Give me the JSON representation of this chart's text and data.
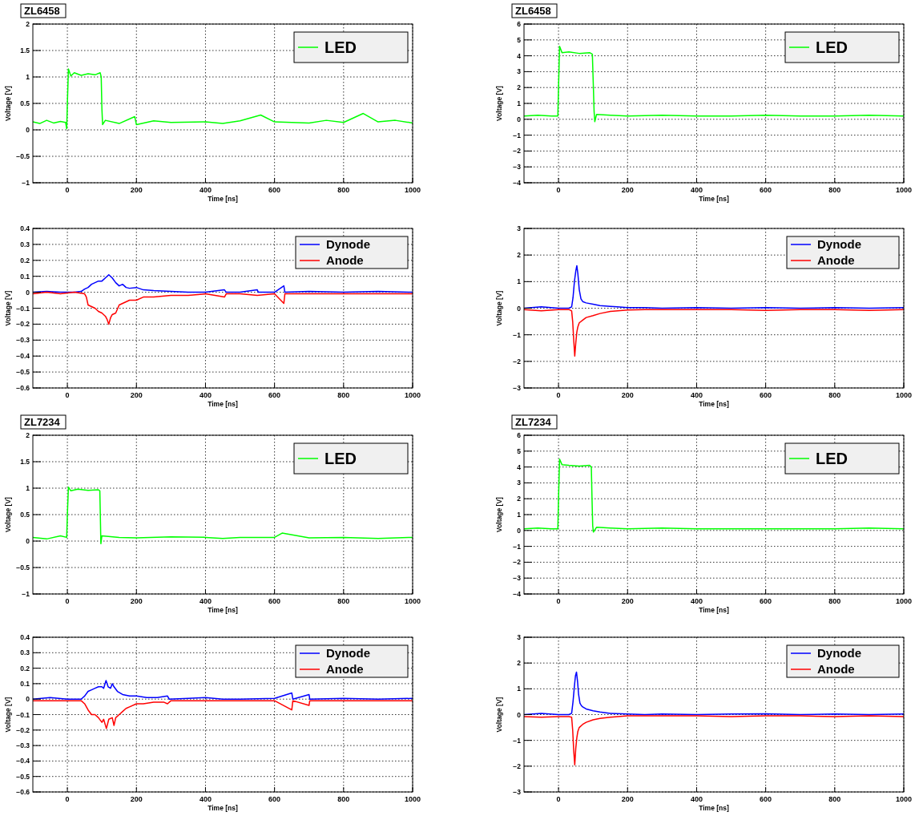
{
  "chart_data": [
    {
      "type": "line",
      "title": "ZL6458",
      "xlabel": "Time [ns]",
      "ylabel": "Voltage [V]",
      "xlim": [
        -100,
        1000
      ],
      "xticks": [
        0,
        200,
        400,
        600,
        800,
        1000
      ],
      "ylim": [
        -1,
        2
      ],
      "yticks": [
        -1,
        -0.5,
        0,
        0.5,
        1,
        1.5,
        2
      ],
      "grid": true,
      "legend": "top right",
      "series": [
        {
          "name": "LED",
          "color": "#00ff00",
          "x": [
            -100,
            -80,
            -60,
            -40,
            -20,
            -5,
            -2,
            0,
            3,
            10,
            20,
            40,
            60,
            80,
            95,
            98,
            100,
            102,
            110,
            150,
            195,
            200,
            250,
            300,
            400,
            450,
            500,
            560,
            600,
            700,
            750,
            800,
            857,
            900,
            950,
            1000
          ],
          "values": [
            0.15,
            0.12,
            0.18,
            0.13,
            0.16,
            0.14,
            0.02,
            0.5,
            1.15,
            1.02,
            1.08,
            1.03,
            1.06,
            1.04,
            1.08,
            1.0,
            0.4,
            0.1,
            0.18,
            0.12,
            0.25,
            0.1,
            0.17,
            0.14,
            0.15,
            0.12,
            0.17,
            0.28,
            0.15,
            0.13,
            0.18,
            0.14,
            0.31,
            0.15,
            0.18,
            0.13
          ]
        }
      ]
    },
    {
      "type": "line",
      "title": "ZL6458",
      "xlabel": "Time [ns]",
      "ylabel": "Voltage [V]",
      "xlim": [
        -100,
        1000
      ],
      "xticks": [
        0,
        200,
        400,
        600,
        800,
        1000
      ],
      "ylim": [
        -4,
        6
      ],
      "yticks": [
        -4,
        -3,
        -2,
        -1,
        0,
        1,
        2,
        3,
        4,
        5,
        6
      ],
      "grid": true,
      "legend": "top right",
      "series": [
        {
          "name": "LED",
          "color": "#00ff00",
          "x": [
            -100,
            -60,
            -20,
            -2,
            0,
            3,
            10,
            30,
            60,
            90,
            98,
            101,
            103,
            105,
            110,
            150,
            200,
            300,
            400,
            500,
            600,
            700,
            800,
            900,
            1000
          ],
          "values": [
            0.2,
            0.25,
            0.2,
            0.2,
            2.0,
            4.6,
            4.2,
            4.25,
            4.15,
            4.2,
            4.1,
            2.0,
            0.5,
            -0.15,
            0.3,
            0.25,
            0.2,
            0.25,
            0.2,
            0.2,
            0.25,
            0.2,
            0.2,
            0.25,
            0.2
          ]
        }
      ]
    },
    {
      "type": "line",
      "xlabel": "Time [ns]",
      "ylabel": "Voltage [V]",
      "xlim": [
        -100,
        1000
      ],
      "xticks": [
        0,
        200,
        400,
        600,
        800,
        1000
      ],
      "ylim": [
        -0.6,
        0.4
      ],
      "yticks": [
        -0.6,
        -0.5,
        -0.4,
        -0.3,
        -0.2,
        -0.1,
        0,
        0.1,
        0.2,
        0.3,
        0.4
      ],
      "grid": true,
      "legend": "top right",
      "series": [
        {
          "name": "Dynode",
          "color": "#0000ff",
          "x": [
            -100,
            -60,
            -20,
            20,
            40,
            50,
            60,
            70,
            80,
            90,
            100,
            110,
            115,
            120,
            125,
            130,
            140,
            150,
            160,
            170,
            180,
            200,
            220,
            250,
            300,
            350,
            400,
            455,
            460,
            500,
            550,
            553,
            600,
            627,
            630,
            700,
            800,
            900,
            1000
          ],
          "values": [
            0,
            0.005,
            0,
            0,
            0.005,
            0.02,
            0.03,
            0.05,
            0.06,
            0.07,
            0.07,
            0.09,
            0.1,
            0.11,
            0.1,
            0.09,
            0.06,
            0.04,
            0.05,
            0.03,
            0.025,
            0.03,
            0.015,
            0.01,
            0.005,
            0,
            0,
            0.015,
            0,
            0,
            0.015,
            0,
            0,
            0.04,
            0,
            0.005,
            0,
            0.005,
            0
          ]
        },
        {
          "name": "Anode",
          "color": "#ff0000",
          "x": [
            -100,
            -60,
            -20,
            20,
            50,
            55,
            60,
            70,
            80,
            90,
            100,
            110,
            115,
            120,
            125,
            130,
            140,
            150,
            160,
            170,
            180,
            200,
            220,
            250,
            300,
            350,
            400,
            455,
            460,
            500,
            550,
            600,
            627,
            630,
            700,
            800,
            900,
            1000
          ],
          "values": [
            -0.01,
            0,
            -0.01,
            0,
            -0.01,
            -0.03,
            -0.08,
            -0.09,
            -0.1,
            -0.12,
            -0.13,
            -0.15,
            -0.17,
            -0.2,
            -0.16,
            -0.14,
            -0.13,
            -0.08,
            -0.07,
            -0.06,
            -0.05,
            -0.05,
            -0.03,
            -0.03,
            -0.02,
            -0.02,
            -0.01,
            -0.03,
            -0.01,
            -0.01,
            -0.02,
            -0.01,
            -0.07,
            -0.01,
            -0.01,
            -0.01,
            -0.01,
            -0.01
          ]
        }
      ]
    },
    {
      "type": "line",
      "xlabel": "Time [ns]",
      "ylabel": "Voltage [V]",
      "xlim": [
        -100,
        1000
      ],
      "xticks": [
        0,
        200,
        400,
        600,
        800,
        1000
      ],
      "ylim": [
        -3,
        3
      ],
      "yticks": [
        -3,
        -2,
        -1,
        0,
        1,
        2,
        3
      ],
      "grid": true,
      "legend": "top right",
      "series": [
        {
          "name": "Dynode",
          "color": "#0000ff",
          "x": [
            -100,
            -50,
            0,
            30,
            38,
            42,
            46,
            50,
            53,
            56,
            60,
            65,
            70,
            80,
            100,
            120,
            150,
            170,
            200,
            250,
            300,
            400,
            500,
            600,
            700,
            800,
            900,
            1000
          ],
          "values": [
            0,
            0.05,
            0,
            0,
            0.05,
            0.4,
            1.0,
            1.4,
            1.6,
            1.3,
            0.7,
            0.35,
            0.25,
            0.2,
            0.15,
            0.1,
            0.07,
            0.05,
            0.02,
            0.02,
            0,
            0.02,
            0,
            0.02,
            0,
            0.02,
            0,
            0.02
          ]
        },
        {
          "name": "Anode",
          "color": "#ff0000",
          "x": [
            -100,
            -50,
            0,
            30,
            38,
            41,
            44,
            47,
            50,
            53,
            56,
            60,
            70,
            80,
            100,
            120,
            150,
            200,
            250,
            300,
            400,
            500,
            600,
            700,
            800,
            900,
            1000
          ],
          "values": [
            -0.05,
            -0.1,
            -0.05,
            -0.05,
            -0.1,
            -0.5,
            -1.2,
            -1.8,
            -1.3,
            -0.9,
            -0.7,
            -0.55,
            -0.45,
            -0.35,
            -0.28,
            -0.2,
            -0.12,
            -0.07,
            -0.05,
            -0.05,
            -0.05,
            -0.05,
            -0.08,
            -0.05,
            -0.05,
            -0.08,
            -0.05
          ]
        }
      ]
    },
    {
      "type": "line",
      "title": "ZL7234",
      "xlabel": "Time [ns]",
      "ylabel": "Voltage [V]",
      "xlim": [
        -100,
        1000
      ],
      "xticks": [
        0,
        200,
        400,
        600,
        800,
        1000
      ],
      "ylim": [
        -1,
        2
      ],
      "yticks": [
        -1,
        -0.5,
        0,
        0.5,
        1,
        1.5,
        2
      ],
      "grid": true,
      "legend": "top right",
      "series": [
        {
          "name": "LED",
          "color": "#00ff00",
          "x": [
            -100,
            -60,
            -20,
            -2,
            0,
            3,
            10,
            30,
            60,
            90,
            94,
            96,
            97,
            100,
            150,
            200,
            300,
            400,
            450,
            500,
            600,
            622,
            700,
            800,
            900,
            1000
          ],
          "values": [
            0.07,
            0.04,
            0.1,
            0.07,
            0.5,
            1.02,
            0.95,
            0.98,
            0.96,
            0.97,
            0.95,
            0.3,
            -0.05,
            0.1,
            0.07,
            0.06,
            0.08,
            0.07,
            0.05,
            0.07,
            0.07,
            0.15,
            0.06,
            0.07,
            0.05,
            0.07
          ]
        }
      ]
    },
    {
      "type": "line",
      "title": "ZL7234",
      "xlabel": "Time [ns]",
      "ylabel": "Voltage [V]",
      "xlim": [
        -100,
        1000
      ],
      "xticks": [
        0,
        200,
        400,
        600,
        800,
        1000
      ],
      "ylim": [
        -4,
        6
      ],
      "yticks": [
        -4,
        -3,
        -2,
        -1,
        0,
        1,
        2,
        3,
        4,
        5,
        6
      ],
      "grid": true,
      "legend": "top right",
      "series": [
        {
          "name": "LED",
          "color": "#00ff00",
          "x": [
            -100,
            -60,
            -20,
            -2,
            0,
            3,
            10,
            30,
            60,
            90,
            95,
            97,
            99,
            101,
            110,
            150,
            200,
            300,
            400,
            500,
            600,
            700,
            800,
            900,
            1000
          ],
          "values": [
            0.1,
            0.15,
            0.1,
            0.1,
            2.0,
            4.5,
            4.15,
            4.1,
            4.05,
            4.1,
            4.0,
            2.0,
            0.3,
            -0.1,
            0.2,
            0.15,
            0.1,
            0.15,
            0.1,
            0.1,
            0.1,
            0.1,
            0.1,
            0.15,
            0.1
          ]
        }
      ]
    },
    {
      "type": "line",
      "xlabel": "Time [ns]",
      "ylabel": "Voltage [V]",
      "xlim": [
        -100,
        1000
      ],
      "xticks": [
        0,
        200,
        400,
        600,
        800,
        1000
      ],
      "ylim": [
        -0.6,
        0.4
      ],
      "yticks": [
        -0.6,
        -0.5,
        -0.4,
        -0.3,
        -0.2,
        -0.1,
        0,
        0.1,
        0.2,
        0.3,
        0.4
      ],
      "grid": true,
      "legend": "top right",
      "series": [
        {
          "name": "Dynode",
          "color": "#0000ff",
          "x": [
            -100,
            -50,
            0,
            40,
            45,
            50,
            60,
            70,
            80,
            90,
            100,
            105,
            112,
            118,
            125,
            130,
            135,
            145,
            160,
            180,
            200,
            230,
            260,
            290,
            295,
            350,
            400,
            450,
            500,
            600,
            650,
            653,
            700,
            702,
            800,
            900,
            1000
          ],
          "values": [
            0,
            0.01,
            0,
            0,
            0.01,
            0.02,
            0.05,
            0.06,
            0.07,
            0.08,
            0.08,
            0.07,
            0.12,
            0.08,
            0.07,
            0.1,
            0.08,
            0.05,
            0.03,
            0.02,
            0.02,
            0.01,
            0.01,
            0.02,
            0,
            0.005,
            0.01,
            0,
            0,
            0.005,
            0.04,
            0,
            0.03,
            0,
            0.005,
            0,
            0.005
          ]
        },
        {
          "name": "Anode",
          "color": "#ff0000",
          "x": [
            -100,
            -50,
            0,
            40,
            50,
            60,
            70,
            80,
            90,
            100,
            105,
            113,
            120,
            130,
            135,
            140,
            150,
            160,
            170,
            180,
            200,
            220,
            250,
            280,
            290,
            300,
            350,
            400,
            500,
            600,
            650,
            653,
            700,
            702,
            800,
            900,
            1000
          ],
          "values": [
            -0.01,
            -0.01,
            -0.01,
            -0.01,
            -0.03,
            -0.07,
            -0.1,
            -0.1,
            -0.12,
            -0.15,
            -0.13,
            -0.19,
            -0.13,
            -0.12,
            -0.17,
            -0.12,
            -0.1,
            -0.08,
            -0.06,
            -0.05,
            -0.03,
            -0.03,
            -0.02,
            -0.02,
            -0.03,
            -0.01,
            -0.01,
            -0.01,
            -0.01,
            -0.01,
            -0.07,
            -0.01,
            -0.04,
            -0.01,
            -0.01,
            -0.01,
            -0.01
          ]
        }
      ]
    },
    {
      "type": "line",
      "xlabel": "Time [ns]",
      "ylabel": "Voltage [V]",
      "xlim": [
        -100,
        1000
      ],
      "xticks": [
        0,
        200,
        400,
        600,
        800,
        1000
      ],
      "ylim": [
        -3,
        3
      ],
      "yticks": [
        -3,
        -2,
        -1,
        0,
        1,
        2,
        3
      ],
      "grid": true,
      "legend": "top right",
      "series": [
        {
          "name": "Dynode",
          "color": "#0000ff",
          "x": [
            -100,
            -50,
            0,
            30,
            38,
            42,
            46,
            49,
            52,
            55,
            58,
            62,
            66,
            70,
            80,
            100,
            120,
            150,
            200,
            250,
            300,
            400,
            500,
            600,
            700,
            800,
            900,
            1000
          ],
          "values": [
            0,
            0.05,
            0,
            0,
            0.05,
            0.5,
            1.1,
            1.5,
            1.65,
            1.3,
            0.8,
            0.45,
            0.35,
            0.3,
            0.22,
            0.15,
            0.1,
            0.05,
            0.02,
            0,
            0.02,
            0,
            0.02,
            0.03,
            0,
            0.02,
            0,
            0.02
          ]
        },
        {
          "name": "Anode",
          "color": "#ff0000",
          "x": [
            -100,
            -50,
            0,
            30,
            38,
            41,
            44,
            47,
            50,
            53,
            56,
            60,
            70,
            80,
            100,
            120,
            150,
            200,
            250,
            300,
            400,
            500,
            600,
            700,
            800,
            900,
            1000
          ],
          "values": [
            -0.08,
            -0.1,
            -0.08,
            -0.08,
            -0.1,
            -0.6,
            -1.4,
            -1.95,
            -1.3,
            -0.9,
            -0.65,
            -0.5,
            -0.38,
            -0.3,
            -0.2,
            -0.15,
            -0.1,
            -0.05,
            -0.05,
            -0.05,
            -0.05,
            -0.08,
            -0.05,
            -0.05,
            -0.08,
            -0.05,
            -0.08
          ]
        }
      ]
    }
  ]
}
